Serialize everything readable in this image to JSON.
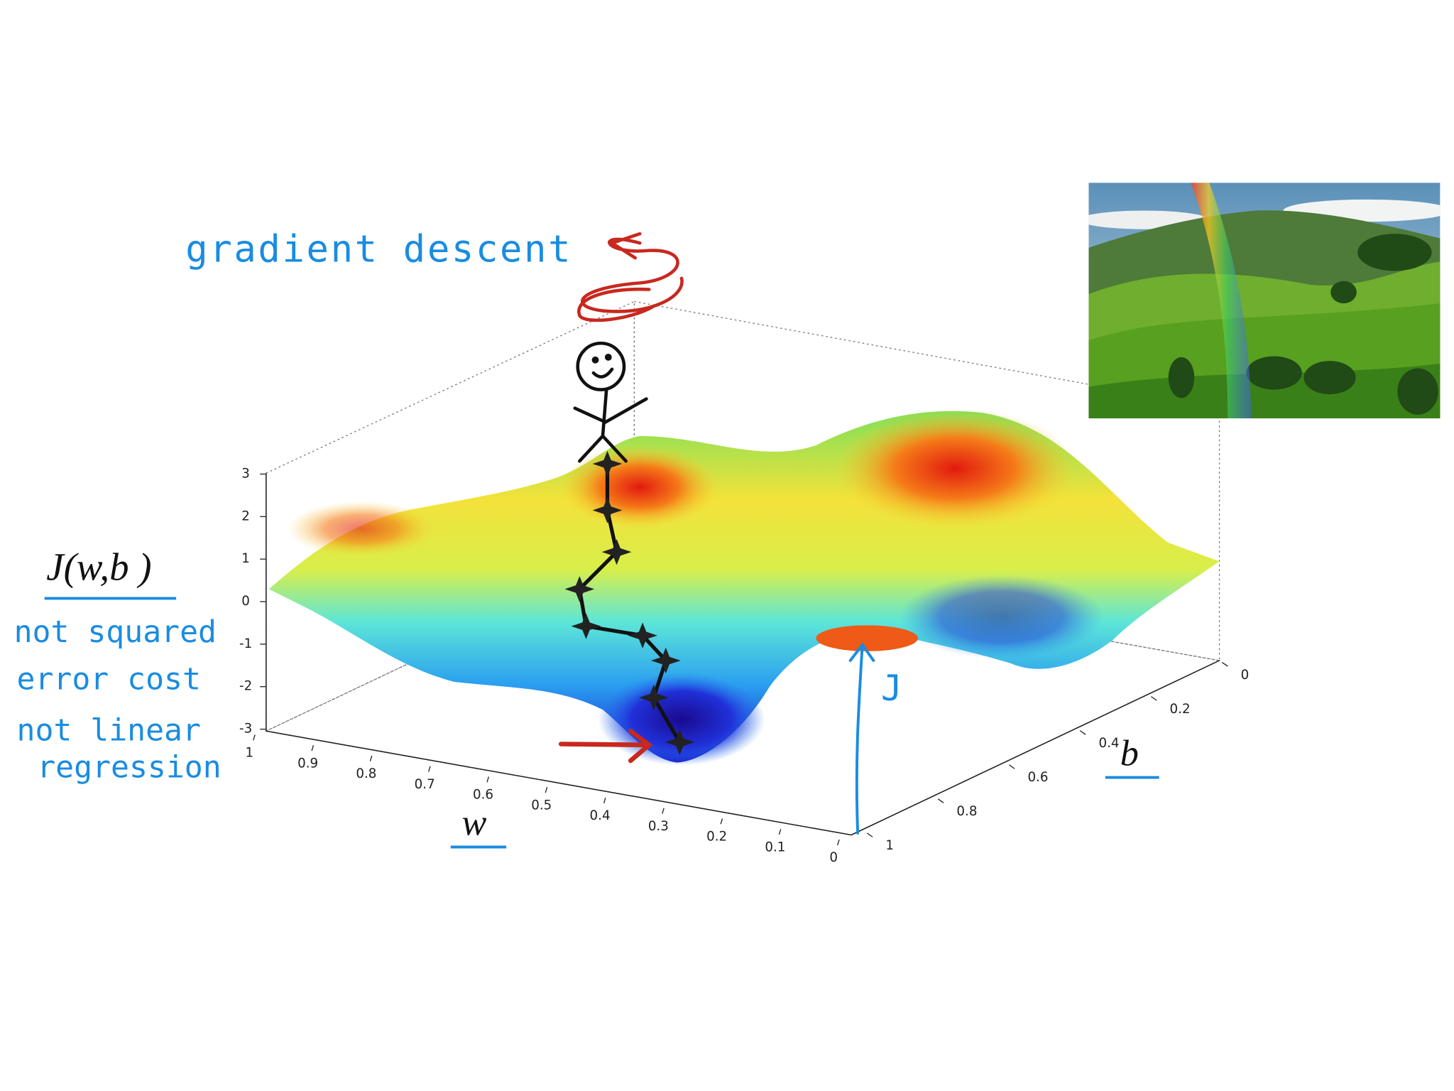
{
  "annotations": {
    "title": "gradient descent",
    "cost_label": "J(w,b )",
    "notes": [
      "not squared",
      "error cost",
      "not linear",
      "regression"
    ],
    "w_label": "w",
    "b_label": "b",
    "j_label": "J"
  },
  "plot": {
    "z_ticks": [
      3,
      2,
      1,
      0,
      -1,
      -2,
      -3
    ],
    "w_ticks": [
      1,
      0.9,
      0.8,
      0.7,
      0.6,
      0.5,
      0.4,
      0.3,
      0.2,
      0.1,
      0
    ],
    "b_ticks": [
      0,
      0.2,
      0.4,
      0.6,
      0.8,
      1
    ]
  }
}
